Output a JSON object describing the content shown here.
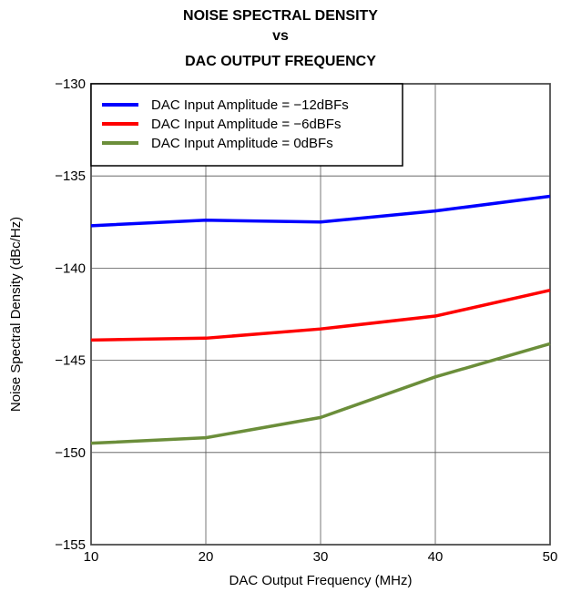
{
  "chart_data": {
    "type": "line",
    "title": [
      "NOISE SPECTRAL DENSITY",
      "vs",
      "DAC OUTPUT FREQUENCY"
    ],
    "xlabel": "DAC Output Frequency (MHz)",
    "ylabel": "Noise Spectral Density (dBc/Hz)",
    "xlim": [
      10,
      50
    ],
    "ylim": [
      -155,
      -130
    ],
    "xticks": [
      10,
      20,
      30,
      40,
      50
    ],
    "yticks": [
      -155,
      -150,
      -145,
      -140,
      -135,
      -130
    ],
    "ytick_labels": [
      "−155",
      "−150",
      "−145",
      "−140",
      "−135",
      "−130"
    ],
    "xtick_labels": [
      "10",
      "20",
      "30",
      "40",
      "50"
    ],
    "grid": true,
    "legend_position": "top-left",
    "series": [
      {
        "name": "DAC Input Amplitude = −12dBFs",
        "color": "#0000ff",
        "x": [
          10,
          20,
          30,
          40,
          50
        ],
        "y": [
          -137.7,
          -137.4,
          -137.5,
          -136.9,
          -136.1
        ]
      },
      {
        "name": "DAC Input Amplitude = −6dBFs",
        "color": "#ff0000",
        "x": [
          10,
          20,
          30,
          40,
          50
        ],
        "y": [
          -143.9,
          -143.8,
          -143.3,
          -142.6,
          -141.2
        ]
      },
      {
        "name": "DAC Input Amplitude = 0dBFs",
        "color": "#6b8e3a",
        "x": [
          10,
          20,
          30,
          40,
          50
        ],
        "y": [
          -149.5,
          -149.2,
          -148.1,
          -145.9,
          -144.1
        ]
      }
    ]
  }
}
